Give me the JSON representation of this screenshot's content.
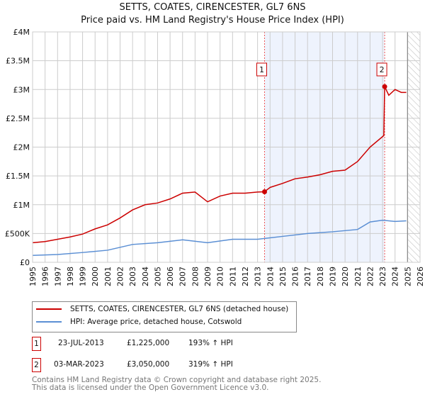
{
  "title": "SETTS, COATES, CIRENCESTER, GL7 6NS",
  "subtitle": "Price paid vs. HM Land Registry's House Price Index (HPI)",
  "chart_data": {
    "type": "line",
    "title": "SETTS, COATES, CIRENCESTER, GL7 6NS — Price paid vs. HM Land Registry's House Price Index (HPI)",
    "xlim": [
      1995,
      2026
    ],
    "ylim": [
      0,
      4000000
    ],
    "x_ticks": [
      "1995",
      "1996",
      "1997",
      "1998",
      "1999",
      "2000",
      "2001",
      "2002",
      "2003",
      "2004",
      "2005",
      "2006",
      "2007",
      "2008",
      "2009",
      "2010",
      "2011",
      "2012",
      "2013",
      "2014",
      "2015",
      "2016",
      "2017",
      "2018",
      "2019",
      "2020",
      "2021",
      "2022",
      "2023",
      "2024",
      "2025",
      "2026"
    ],
    "y_ticks": [
      {
        "v": 0,
        "l": "£0"
      },
      {
        "v": 500000,
        "l": "£500K"
      },
      {
        "v": 1000000,
        "l": "£1M"
      },
      {
        "v": 1500000,
        "l": "£1.5M"
      },
      {
        "v": 2000000,
        "l": "£2M"
      },
      {
        "v": 2500000,
        "l": "£2.5M"
      },
      {
        "v": 3000000,
        "l": "£3M"
      },
      {
        "v": 3500000,
        "l": "£3.5M"
      },
      {
        "v": 4000000,
        "l": "£4M"
      }
    ],
    "series": [
      {
        "name": "SETTS, COATES, CIRENCESTER, GL7 6NS (detached house)",
        "color": "#cc0000",
        "x": [
          1995,
          1996,
          1997,
          1998,
          1999,
          2000,
          2001,
          2002,
          2003,
          2004,
          2005,
          2006,
          2007,
          2008,
          2009,
          2010,
          2011,
          2012,
          2013,
          2013.55,
          2014,
          2015,
          2016,
          2017,
          2018,
          2019,
          2020,
          2021,
          2022,
          2023.1,
          2023.17,
          2023.5,
          2024,
          2024.5,
          2024.9
        ],
        "y": [
          340000,
          360000,
          400000,
          440000,
          490000,
          580000,
          650000,
          770000,
          910000,
          1000000,
          1030000,
          1100000,
          1200000,
          1220000,
          1050000,
          1150000,
          1200000,
          1200000,
          1220000,
          1225000,
          1300000,
          1370000,
          1450000,
          1480000,
          1520000,
          1580000,
          1600000,
          1750000,
          2000000,
          2200000,
          3050000,
          2900000,
          3000000,
          2950000,
          2950000
        ]
      },
      {
        "name": "HPI: Average price, detached house, Cotswold",
        "color": "#5b8fd4",
        "x": [
          1995,
          1997,
          1999,
          2001,
          2003,
          2005,
          2007,
          2009,
          2011,
          2013,
          2015,
          2017,
          2019,
          2021,
          2022,
          2023,
          2024,
          2024.9
        ],
        "y": [
          120000,
          135000,
          170000,
          210000,
          310000,
          340000,
          390000,
          340000,
          400000,
          400000,
          450000,
          500000,
          530000,
          570000,
          700000,
          730000,
          710000,
          720000
        ]
      }
    ],
    "annotations": [
      {
        "label": "1",
        "x": 2013.56,
        "y": 1225000
      },
      {
        "label": "2",
        "x": 2023.17,
        "y": 3050000
      }
    ],
    "shaded_range": [
      2013.56,
      2023.17
    ],
    "hatched_range": [
      2025,
      2026
    ],
    "legend": "below"
  },
  "legend": [
    "SETTS, COATES, CIRENCESTER, GL7 6NS (detached house)",
    "HPI: Average price, detached house, Cotswold"
  ],
  "sales": [
    {
      "n": "1",
      "date": "23-JUL-2013",
      "price": "£1,225,000",
      "hpi": "193% ↑ HPI"
    },
    {
      "n": "2",
      "date": "03-MAR-2023",
      "price": "£3,050,000",
      "hpi": "319% ↑ HPI"
    }
  ],
  "footer": [
    "Contains HM Land Registry data © Crown copyright and database right 2025.",
    "This data is licensed under the Open Government Licence v3.0."
  ]
}
